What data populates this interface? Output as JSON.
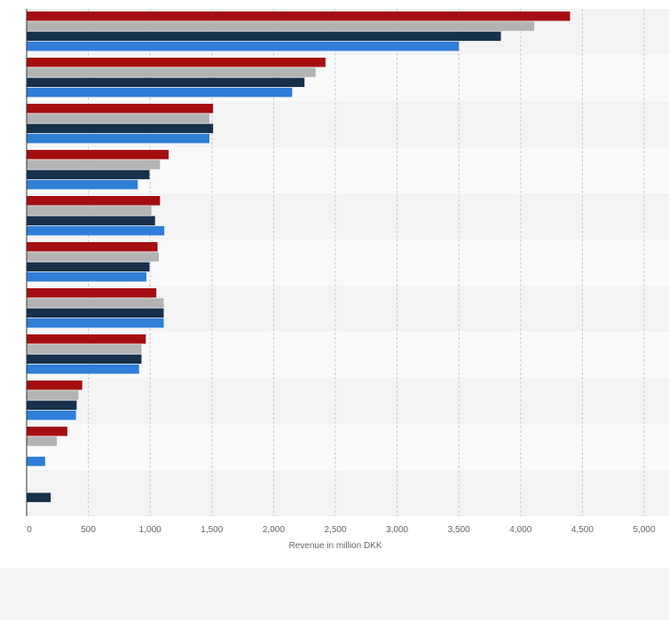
{
  "chart_data": {
    "type": "bar",
    "orientation": "horizontal",
    "title": "",
    "xlabel": "Revenue in million DKK",
    "ylabel": "",
    "xlim": [
      0,
      5000
    ],
    "x_ticks": [
      0,
      500,
      1000,
      1500,
      2000,
      2500,
      3000,
      3500,
      4000,
      4500,
      5000
    ],
    "x_tick_labels": [
      "0",
      "500",
      "1,000",
      "1,500",
      "2,000",
      "2,500",
      "3,000",
      "3,500",
      "4,000",
      "4,500",
      "5,000"
    ],
    "grid": true,
    "legend": "none",
    "categories": [
      "",
      "",
      "",
      "",
      "",
      "",
      "",
      "",
      "",
      "",
      ""
    ],
    "series": [
      {
        "color": "#a50e11",
        "values": [
          4400,
          2420,
          1510,
          1150,
          1080,
          1060,
          1050,
          965,
          450,
          330,
          0
        ]
      },
      {
        "color": "#b3b3b3",
        "values": [
          4110,
          2340,
          1480,
          1080,
          1010,
          1070,
          1110,
          930,
          420,
          245,
          0
        ]
      },
      {
        "color": "#17304b",
        "values": [
          3840,
          2250,
          1510,
          995,
          1040,
          995,
          1110,
          930,
          405,
          0,
          195
        ]
      },
      {
        "color": "#2f7ed8",
        "values": [
          3500,
          2150,
          1480,
          900,
          1115,
          970,
          1110,
          910,
          400,
          150,
          0
        ]
      }
    ]
  }
}
